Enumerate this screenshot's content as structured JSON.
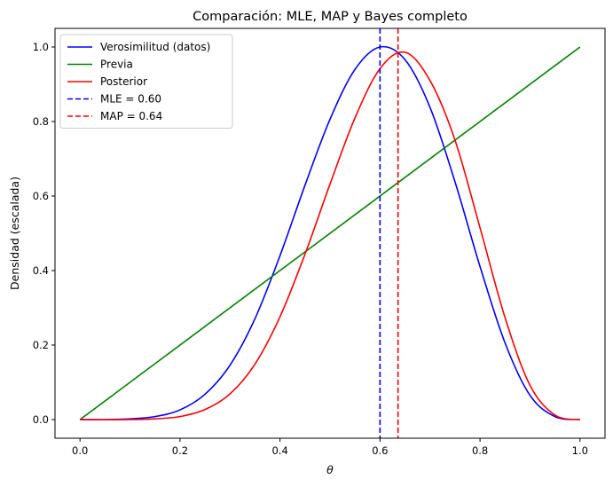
{
  "chart_data": {
    "type": "line",
    "title": "Comparación: MLE, MAP y Bayes completo",
    "xlabel": "θ",
    "ylabel": "Densidad (escalada)",
    "xlim": [
      -0.05,
      1.05
    ],
    "ylim": [
      -0.05,
      1.05
    ],
    "xticks": [
      "0.0",
      "0.2",
      "0.4",
      "0.6",
      "0.8",
      "1.0"
    ],
    "yticks": [
      "0.0",
      "0.2",
      "0.4",
      "0.6",
      "0.8",
      "1.0"
    ],
    "grid": false,
    "legend_position": "top-left",
    "series": [
      {
        "name": "Verosimilitud (datos)",
        "color": "#0000ff",
        "style": "solid",
        "x": [
          0.0,
          0.05,
          0.1,
          0.15,
          0.2,
          0.25,
          0.3,
          0.35,
          0.4,
          0.45,
          0.5,
          0.55,
          0.6,
          0.65,
          0.7,
          0.75,
          0.8,
          0.85,
          0.9,
          0.95,
          1.0
        ],
        "y": [
          0.0,
          0.0,
          0.002,
          0.008,
          0.026,
          0.068,
          0.146,
          0.271,
          0.44,
          0.629,
          0.806,
          0.94,
          1.0,
          0.966,
          0.838,
          0.638,
          0.411,
          0.206,
          0.065,
          0.008,
          0.0
        ]
      },
      {
        "name": "Previa",
        "color": "#008000",
        "style": "solid",
        "x": [
          0.0,
          1.0
        ],
        "y": [
          0.0,
          1.0
        ]
      },
      {
        "name": "Posterior",
        "color": "#ff0000",
        "style": "solid",
        "x": [
          0.0,
          0.05,
          0.1,
          0.15,
          0.2,
          0.25,
          0.3,
          0.35,
          0.4,
          0.45,
          0.5,
          0.55,
          0.6,
          0.65,
          0.7,
          0.75,
          0.8,
          0.85,
          0.9,
          0.95,
          1.0
        ],
        "y": [
          0.0,
          0.0,
          0.0,
          0.002,
          0.008,
          0.027,
          0.069,
          0.149,
          0.276,
          0.444,
          0.632,
          0.81,
          0.942,
          0.986,
          0.91,
          0.75,
          0.515,
          0.274,
          0.092,
          0.012,
          0.0
        ]
      },
      {
        "name": "MLE = 0.60",
        "color": "#0000ff",
        "style": "dashed",
        "vline": 0.6
      },
      {
        "name": "MAP = 0.64",
        "color": "#ff0000",
        "style": "dashed",
        "vline": 0.636
      }
    ]
  }
}
